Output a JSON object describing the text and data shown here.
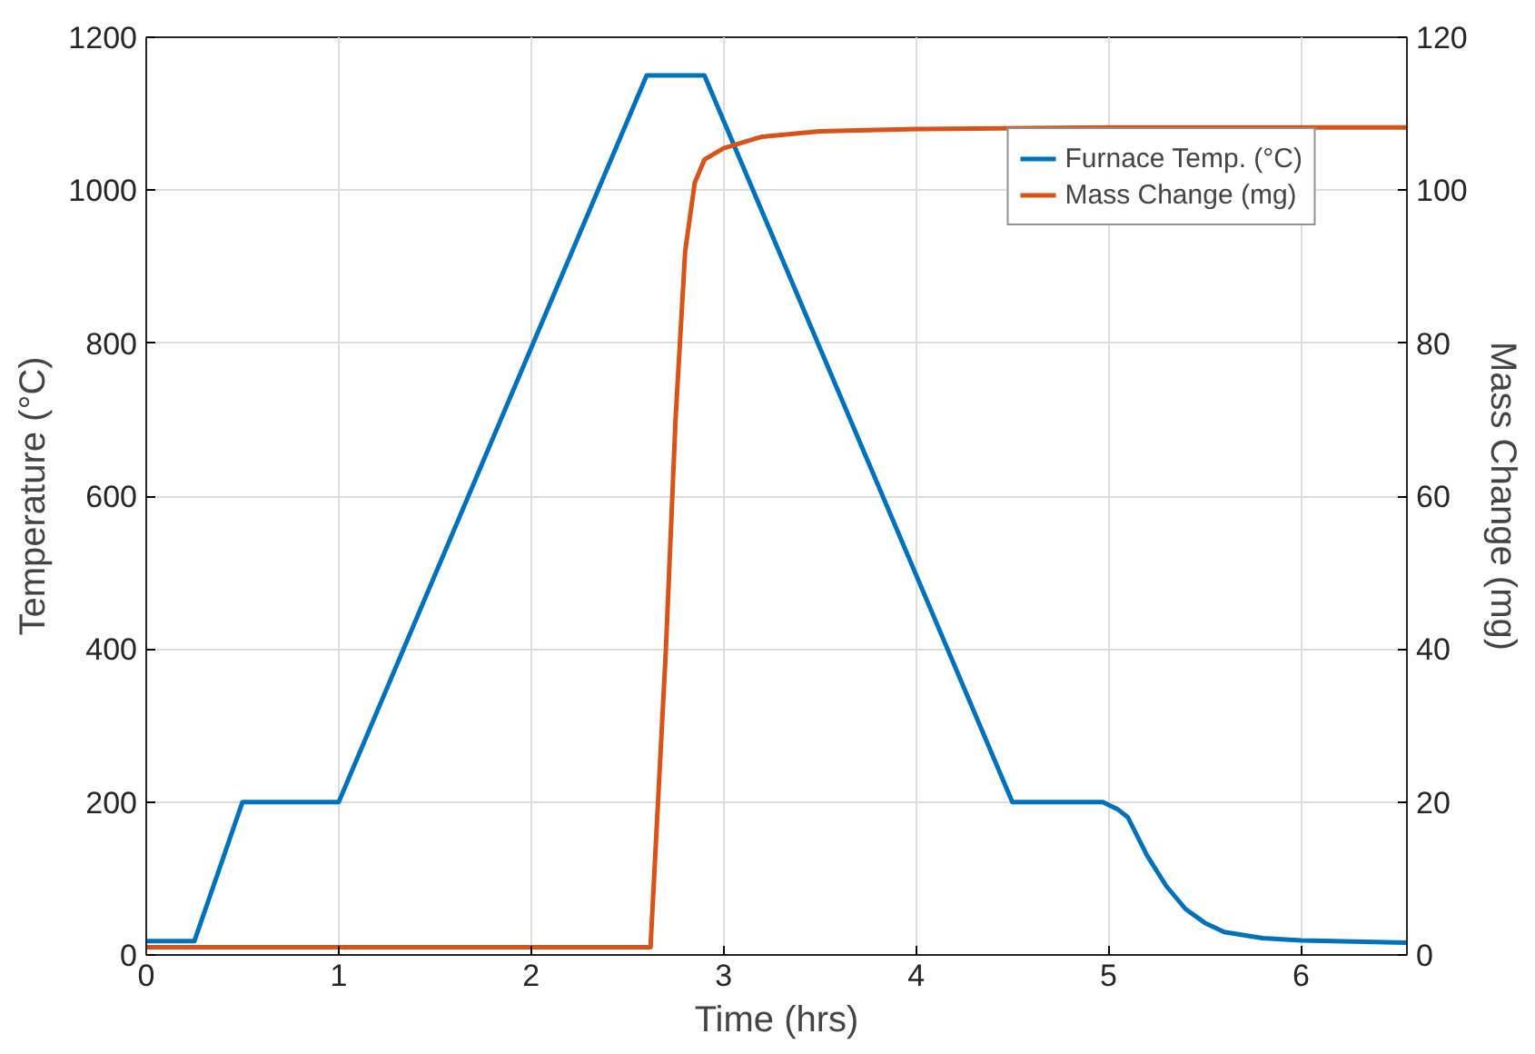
{
  "chart_data": {
    "type": "line",
    "xlabel": "Time (hrs)",
    "ylabel": "Temperature (°C)",
    "y2label": "Mass Change (mg)",
    "xlim": [
      0,
      6.55
    ],
    "xticks": [
      0,
      1,
      2,
      3,
      4,
      5,
      6
    ],
    "ylim": [
      0,
      1200
    ],
    "yticks": [
      0,
      200,
      400,
      600,
      800,
      1000,
      1200
    ],
    "y2lim": [
      0,
      120
    ],
    "y2ticks": [
      0,
      20,
      40,
      60,
      80,
      100,
      120
    ],
    "grid": true,
    "legend": "top right",
    "line_style": "solid",
    "series": [
      {
        "name": "Furnace Temp. (°C)",
        "color": "#0072bd",
        "x": [
          0,
          0.25,
          0.5,
          1.0,
          2.6,
          2.9,
          4.5,
          4.97,
          5.05,
          5.1,
          5.2,
          5.3,
          5.4,
          5.5,
          5.6,
          5.8,
          6.0,
          6.55
        ],
        "values": [
          18,
          18,
          200,
          200,
          1150,
          1150,
          200,
          200,
          190,
          180,
          130,
          90,
          60,
          42,
          30,
          22,
          19,
          16
        ]
      },
      {
        "name": "Mass Change (mg)",
        "color": "#d95319",
        "axis": "y2",
        "x": [
          0,
          2.6,
          2.62,
          2.7,
          2.75,
          2.8,
          2.85,
          2.9,
          3.0,
          3.2,
          3.5,
          4.0,
          5.0,
          6.55
        ],
        "values": [
          1,
          1,
          1,
          40,
          70,
          92,
          101,
          104,
          105.5,
          107,
          107.7,
          108,
          108.2,
          108.2
        ]
      }
    ]
  }
}
